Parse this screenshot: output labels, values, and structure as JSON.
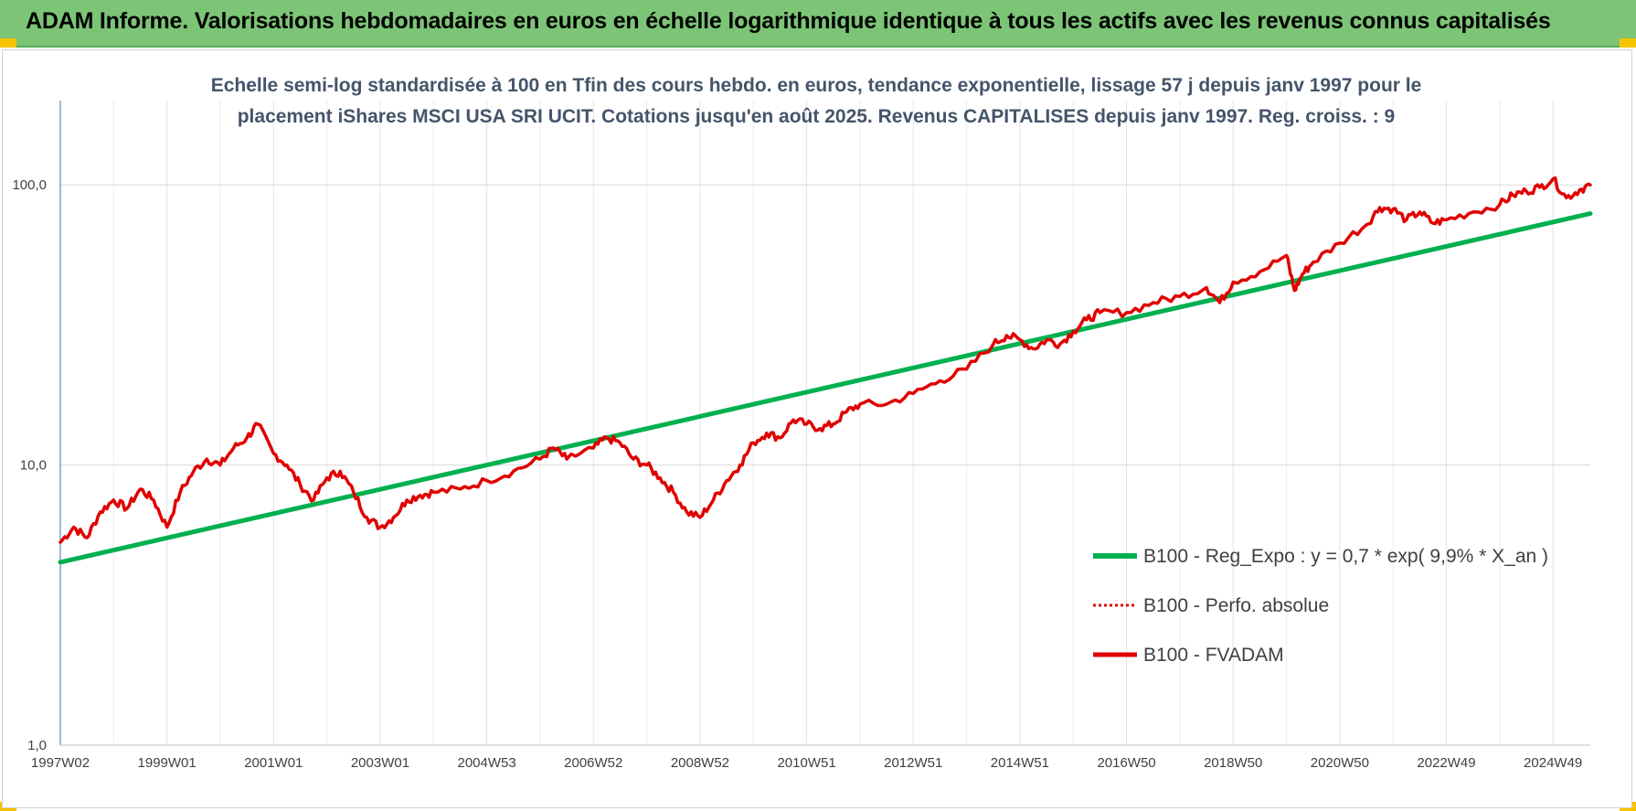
{
  "banner": {
    "title": "ADAM Informe. Valorisations hebdomadaires en euros en échelle logarithmique identique à tous les actifs avec les revenus connus capitalisés",
    "background": "#7cc576"
  },
  "chart_data": {
    "type": "line",
    "title_lines": [
      "Echelle semi-log standardisée à 100 en Tfin des cours hebdo. en euros, tendance exponentielle, lissage 57 j depuis janv 1997 pour le",
      "placement iShares MSCI USA SRI UCIT. Cotations jusqu'en août 2025. Revenus CAPITALISES depuis janv 1997. Reg. croiss. : 9"
    ],
    "y_scale": "log",
    "ylim": [
      1,
      200
    ],
    "y_ticks": [
      1,
      10,
      100
    ],
    "y_tick_labels": [
      "1,0",
      "10,0",
      "100,0"
    ],
    "x_range": [
      "1997-01",
      "2025-08"
    ],
    "x_tick_labels": [
      "1997W02",
      "1999W01",
      "2001W01",
      "2003W01",
      "2004W53",
      "2006W52",
      "2008W52",
      "2010W51",
      "2012W51",
      "2014W51",
      "2016W50",
      "2018W50",
      "2020W50",
      "2022W49",
      "2024W49"
    ],
    "x_tick_years": [
      1997.0,
      1999.0,
      2001.0,
      2003.0,
      2005.0,
      2007.0,
      2009.0,
      2011.0,
      2013.0,
      2015.0,
      2017.0,
      2019.0,
      2021.0,
      2023.0,
      2025.0
    ],
    "grid": true,
    "legend_position": "bottom-right",
    "series": [
      {
        "name": "B100 - Reg_Expo : y = 0,7 * exp( 9,9% *  X_an )",
        "color": "#00b050",
        "style": "solid",
        "x": [
          1997.0,
          2025.7
        ],
        "y": [
          4.5,
          79
        ]
      },
      {
        "name": "B100 - Perfo. absolue",
        "color": "#e00000",
        "style": "dotted",
        "x": [],
        "y": []
      },
      {
        "name": "B100 - FVADAM",
        "color": "#e00000",
        "style": "solid",
        "x": [
          1997.0,
          1997.25,
          1997.5,
          1997.75,
          1998.0,
          1998.25,
          1998.5,
          1998.75,
          1999.0,
          1999.25,
          1999.5,
          1999.75,
          2000.0,
          2000.25,
          2000.5,
          2000.7,
          2001.0,
          2001.25,
          2001.5,
          2001.75,
          2002.0,
          2002.25,
          2002.5,
          2002.75,
          2003.0,
          2003.25,
          2003.5,
          2003.75,
          2004.0,
          2004.5,
          2005.0,
          2005.5,
          2006.0,
          2006.25,
          2006.5,
          2007.0,
          2007.25,
          2007.5,
          2007.75,
          2008.0,
          2008.25,
          2008.5,
          2008.75,
          2009.0,
          2009.25,
          2009.5,
          2009.75,
          2010.0,
          2010.25,
          2010.5,
          2010.75,
          2011.0,
          2011.25,
          2011.5,
          2011.75,
          2012.0,
          2012.5,
          2013.0,
          2013.5,
          2014.0,
          2014.5,
          2014.75,
          2015.0,
          2015.25,
          2015.5,
          2015.75,
          2016.0,
          2016.25,
          2016.5,
          2017.0,
          2017.5,
          2018.0,
          2018.5,
          2018.75,
          2019.0,
          2019.5,
          2020.0,
          2020.15,
          2020.3,
          2020.5,
          2021.0,
          2021.5,
          2021.75,
          2022.0,
          2022.25,
          2022.5,
          2022.75,
          2023.0,
          2023.5,
          2024.0,
          2024.25,
          2024.5,
          2024.75,
          2025.0,
          2025.25,
          2025.5,
          2025.7
        ],
        "y": [
          5.3,
          6.0,
          5.5,
          6.8,
          7.5,
          7.0,
          8.2,
          7.5,
          6.0,
          8.0,
          9.5,
          10.5,
          10.0,
          11.5,
          12.5,
          14.0,
          11.0,
          10.0,
          8.5,
          7.5,
          9.0,
          9.5,
          8.0,
          6.5,
          6.0,
          6.5,
          7.5,
          7.8,
          8.0,
          8.2,
          8.8,
          9.5,
          10.5,
          11.5,
          10.5,
          11.5,
          12.5,
          12.0,
          10.5,
          10.0,
          9.0,
          8.0,
          6.8,
          6.5,
          7.5,
          8.8,
          10.0,
          12.0,
          13.0,
          12.5,
          14.5,
          14.0,
          13.5,
          14.0,
          15.5,
          16.5,
          16.5,
          18.0,
          20.0,
          22.0,
          27.0,
          29.0,
          28.0,
          26.0,
          28.0,
          27.0,
          30.0,
          33.0,
          35.0,
          35.0,
          38.0,
          40.0,
          43.0,
          38.0,
          45.0,
          49.0,
          56.0,
          42.0,
          48.0,
          53.0,
          62.0,
          72.0,
          83.0,
          82.0,
          75.0,
          80.0,
          73.0,
          75.0,
          80.0,
          85.0,
          92.0,
          95.0,
          98.0,
          105.0,
          90.0,
          96.0,
          100.0
        ]
      }
    ]
  }
}
